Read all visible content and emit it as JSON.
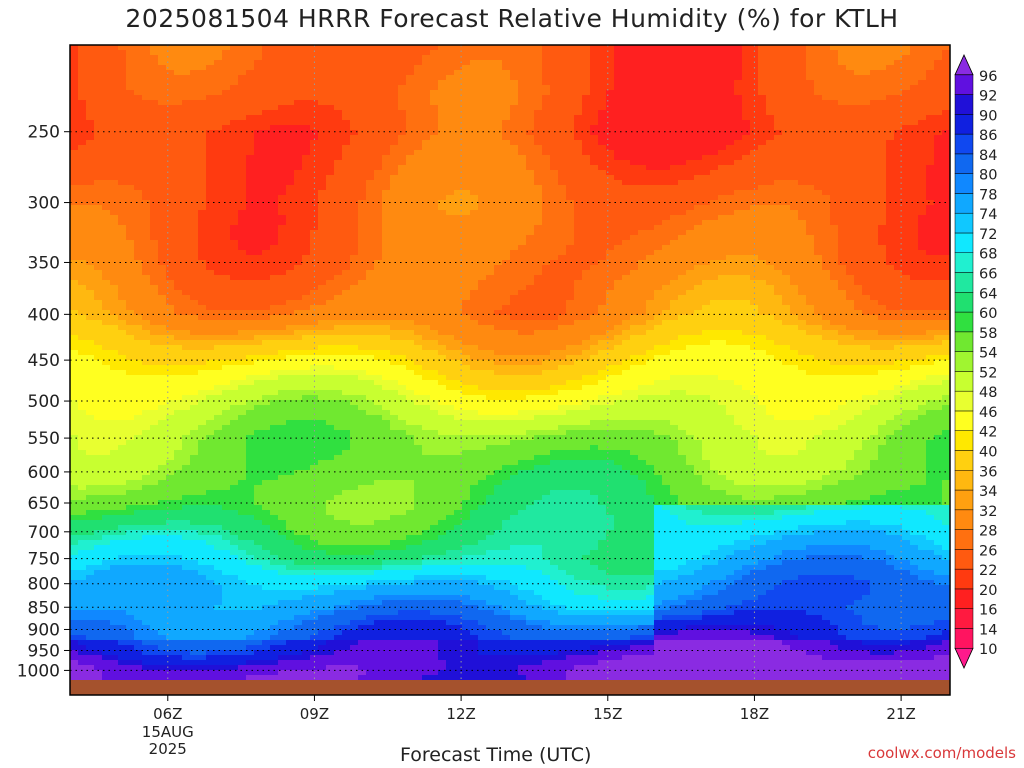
{
  "title": "2025081504 HRRR Forecast Relative Humidity (%) for KTLH",
  "watermark": "coolwx.com/models",
  "chart_data": {
    "type": "heatmap",
    "title": "2025081504 HRRR Forecast Relative Humidity (%) for KTLH",
    "xlabel": "Forecast Time (UTC)",
    "ylabel": "",
    "x_ticks": [
      {
        "label": "06Z",
        "sub": [
          "15AUG",
          "2025"
        ],
        "hour": 6
      },
      {
        "label": "09Z",
        "sub": [],
        "hour": 9
      },
      {
        "label": "12Z",
        "sub": [],
        "hour": 12
      },
      {
        "label": "15Z",
        "sub": [],
        "hour": 15
      },
      {
        "label": "18Z",
        "sub": [],
        "hour": 18
      },
      {
        "label": "21Z",
        "sub": [],
        "hour": 21
      }
    ],
    "xlim_hours": [
      4,
      22
    ],
    "y_ticks": [
      250,
      300,
      350,
      400,
      450,
      500,
      550,
      600,
      650,
      700,
      750,
      800,
      850,
      900,
      950,
      1000
    ],
    "ylim_hpa": [
      200,
      1025
    ],
    "y_scale": "log",
    "colorbar_levels": [
      10,
      14,
      16,
      20,
      22,
      26,
      28,
      32,
      34,
      36,
      40,
      42,
      46,
      48,
      52,
      54,
      58,
      60,
      64,
      66,
      68,
      72,
      74,
      78,
      80,
      84,
      86,
      90,
      92,
      96
    ],
    "colorbar_colors": [
      "#ff1a8c",
      "#ff1460",
      "#ff1a40",
      "#ff2020",
      "#ff3a10",
      "#ff5a10",
      "#ff7010",
      "#ff8a10",
      "#ffa010",
      "#ffb810",
      "#ffd010",
      "#ffe800",
      "#ffff20",
      "#e8ff30",
      "#c8ff30",
      "#a0f530",
      "#70e830",
      "#30e040",
      "#20e070",
      "#20e8a0",
      "#20f0d0",
      "#10e8ff",
      "#10c8ff",
      "#10a8ff",
      "#1088ff",
      "#1068f0",
      "#1048f0",
      "#1020e0",
      "#2010d8",
      "#6010e0",
      "#8a2be2"
    ],
    "profile_rh_by_pressure": [
      {
        "p": 225,
        "rh": 24
      },
      {
        "p": 250,
        "rh": 22
      },
      {
        "p": 300,
        "rh": 26
      },
      {
        "p": 350,
        "rh": 27
      },
      {
        "p": 400,
        "rh": 30
      },
      {
        "p": 450,
        "rh": 40
      },
      {
        "p": 500,
        "rh": 48
      },
      {
        "p": 550,
        "rh": 54
      },
      {
        "p": 600,
        "rh": 56
      },
      {
        "p": 650,
        "rh": 58
      },
      {
        "p": 700,
        "rh": 62
      },
      {
        "p": 750,
        "rh": 66
      },
      {
        "p": 800,
        "rh": 72
      },
      {
        "p": 850,
        "rh": 76
      },
      {
        "p": 900,
        "rh": 82
      },
      {
        "p": 950,
        "rh": 86
      },
      {
        "p": 1000,
        "rh": 92
      }
    ],
    "ground_color": "#a5522d",
    "grid": true
  }
}
